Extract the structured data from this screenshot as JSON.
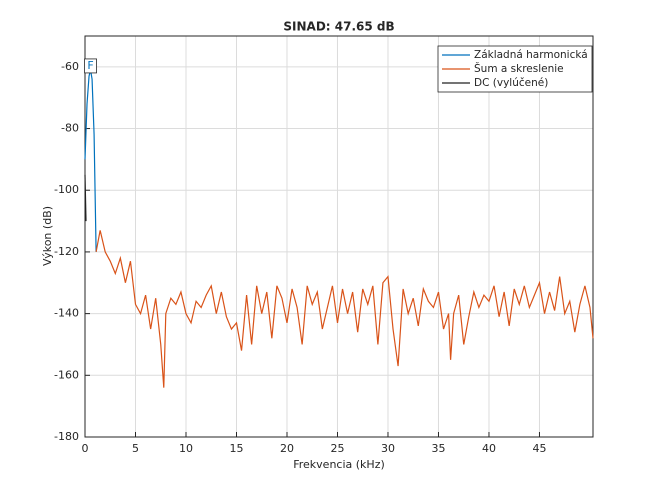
{
  "chart_data": {
    "type": "line",
    "title": "SINAD: 47.65 dB",
    "xlabel": "Frekvencia (kHz)",
    "ylabel": "Výkon (dB)",
    "xlim": [
      0,
      50.3
    ],
    "ylim": [
      -180,
      -50
    ],
    "xticks": [
      0,
      5,
      10,
      15,
      20,
      25,
      30,
      35,
      40,
      45
    ],
    "yticks": [
      -180,
      -160,
      -140,
      -120,
      -100,
      -80,
      -60
    ],
    "grid": true,
    "legend": "top-right",
    "series": [
      {
        "name": "Základná harmonická",
        "color": "#0072bd",
        "marker_label": "F",
        "x": [
          0,
          0.2,
          0.4,
          0.55,
          0.7,
          0.9,
          1.1
        ],
        "values": [
          -90,
          -72,
          -63,
          -61,
          -64,
          -82,
          -120
        ]
      },
      {
        "name": "Šum a skreslenie",
        "color": "#d95319",
        "x": [
          1.1,
          1.5,
          2,
          2.5,
          3,
          3.5,
          4,
          4.5,
          5,
          5.5,
          6,
          6.5,
          7,
          7.5,
          7.8,
          8,
          8.5,
          9,
          9.5,
          10,
          10.5,
          11,
          11.5,
          12,
          12.5,
          13,
          13.5,
          14,
          14.5,
          15,
          15.5,
          16,
          16.5,
          17,
          17.5,
          18,
          18.5,
          19,
          19.5,
          20,
          20.5,
          21,
          21.5,
          22,
          22.5,
          23,
          23.5,
          24,
          24.5,
          25,
          25.5,
          26,
          26.5,
          27,
          27.5,
          28,
          28.5,
          29,
          29.5,
          30,
          30.5,
          31,
          31.5,
          32,
          32.5,
          33,
          33.5,
          34,
          34.5,
          35,
          35.5,
          36,
          36.2,
          36.5,
          37,
          37.5,
          38,
          38.5,
          39,
          39.5,
          40,
          40.5,
          41,
          41.5,
          42,
          42.5,
          43,
          43.5,
          44,
          44.5,
          45,
          45.5,
          46,
          46.5,
          47,
          47.5,
          48,
          48.5,
          49,
          49.5,
          50,
          50.3
        ],
        "values": [
          -120,
          -113,
          -120,
          -123,
          -127,
          -122,
          -130,
          -123,
          -137,
          -140,
          -134,
          -145,
          -135,
          -150,
          -164,
          -140,
          -135,
          -137,
          -133,
          -140,
          -143,
          -136,
          -138,
          -134,
          -131,
          -140,
          -133,
          -141,
          -145,
          -143,
          -152,
          -134,
          -150,
          -131,
          -140,
          -133,
          -148,
          -131,
          -135,
          -143,
          -132,
          -138,
          -150,
          -131,
          -137,
          -133,
          -145,
          -138,
          -131,
          -143,
          -132,
          -140,
          -133,
          -146,
          -132,
          -137,
          -131,
          -150,
          -130,
          -128,
          -145,
          -157,
          -132,
          -140,
          -135,
          -144,
          -132,
          -136,
          -138,
          -133,
          -145,
          -140,
          -155,
          -140,
          -134,
          -150,
          -141,
          -133,
          -138,
          -134,
          -136,
          -131,
          -141,
          -133,
          -144,
          -132,
          -137,
          -131,
          -138,
          -134,
          -130,
          -140,
          -133,
          -139,
          -128,
          -140,
          -136,
          -146,
          -137,
          -131,
          -138,
          -148
        ]
      },
      {
        "name": "DC (vylúčené)",
        "color": "#222222",
        "x": [
          0,
          0.1
        ],
        "values": [
          -95,
          -110
        ]
      }
    ]
  }
}
